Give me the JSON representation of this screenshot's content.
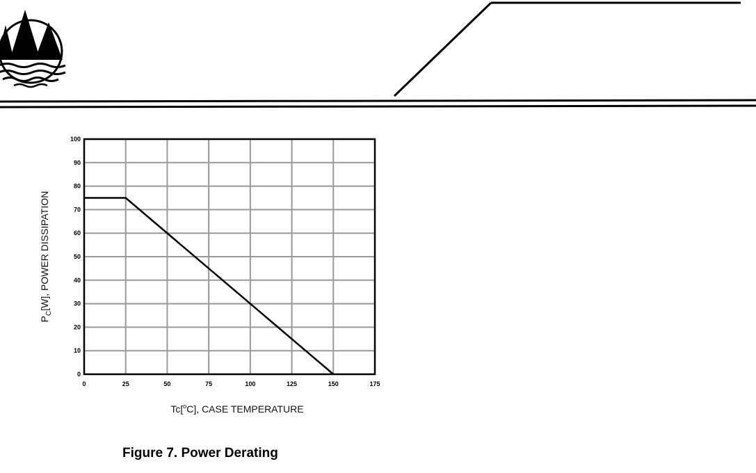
{
  "header": {
    "logo_icon": "mountains-over-waves-logo-icon"
  },
  "figure": {
    "caption": "Figure 7. Power Derating"
  },
  "chart_data": {
    "type": "line",
    "title": "",
    "xlabel_parts": [
      "Tc[",
      "o",
      "C], CASE TEMPERATURE"
    ],
    "ylabel_parts": [
      "P",
      "C",
      "[W], POWER DISSIPATION"
    ],
    "xlim": [
      0,
      175
    ],
    "ylim": [
      0,
      100
    ],
    "x_ticks": [
      0,
      25,
      50,
      75,
      100,
      125,
      150,
      175
    ],
    "y_ticks": [
      0,
      10,
      20,
      30,
      40,
      50,
      60,
      70,
      80,
      90,
      100
    ],
    "grid": true,
    "series": [
      {
        "x": [
          0,
          25,
          150
        ],
        "y": [
          75,
          75,
          0
        ]
      }
    ]
  }
}
